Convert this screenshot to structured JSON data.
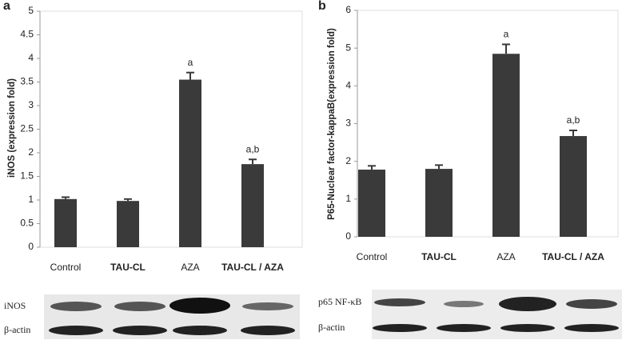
{
  "chart_data": [
    {
      "type": "bar",
      "panel": "a",
      "ylabel": "iNOS (expression fold)",
      "categories": [
        "Control",
        "TAU-CL",
        "AZA",
        "TAU-CL / AZA"
      ],
      "values": [
        1.02,
        0.98,
        3.55,
        1.76
      ],
      "errors": [
        0.04,
        0.04,
        0.15,
        0.1
      ],
      "annotations": [
        null,
        null,
        "a",
        "a,b"
      ],
      "color": "#3a3a3a",
      "ylim": [
        0,
        5
      ],
      "yticks": [
        0,
        0.5,
        1,
        1.5,
        2,
        2.5,
        3,
        3.5,
        4,
        4.5,
        5
      ],
      "grid": false
    },
    {
      "type": "bar",
      "panel": "b",
      "ylabel": "P65-Nuclear factor-kappaB(expression fold)",
      "categories": [
        "Control",
        "TAU-CL",
        "AZA",
        "TAU-CL / AZA"
      ],
      "values": [
        1.78,
        1.8,
        4.85,
        2.67
      ],
      "errors": [
        0.1,
        0.1,
        0.25,
        0.15
      ],
      "annotations": [
        null,
        null,
        "a",
        "a,b"
      ],
      "color": "#3a3a3a",
      "ylim": [
        0,
        6
      ],
      "yticks": [
        0,
        1,
        2,
        3,
        4,
        5,
        6
      ],
      "grid": false
    }
  ],
  "blots": [
    {
      "labels": [
        "iNOS",
        "β-actin"
      ]
    },
    {
      "labels": [
        "p65 NF-κB",
        "β-actin"
      ]
    }
  ]
}
